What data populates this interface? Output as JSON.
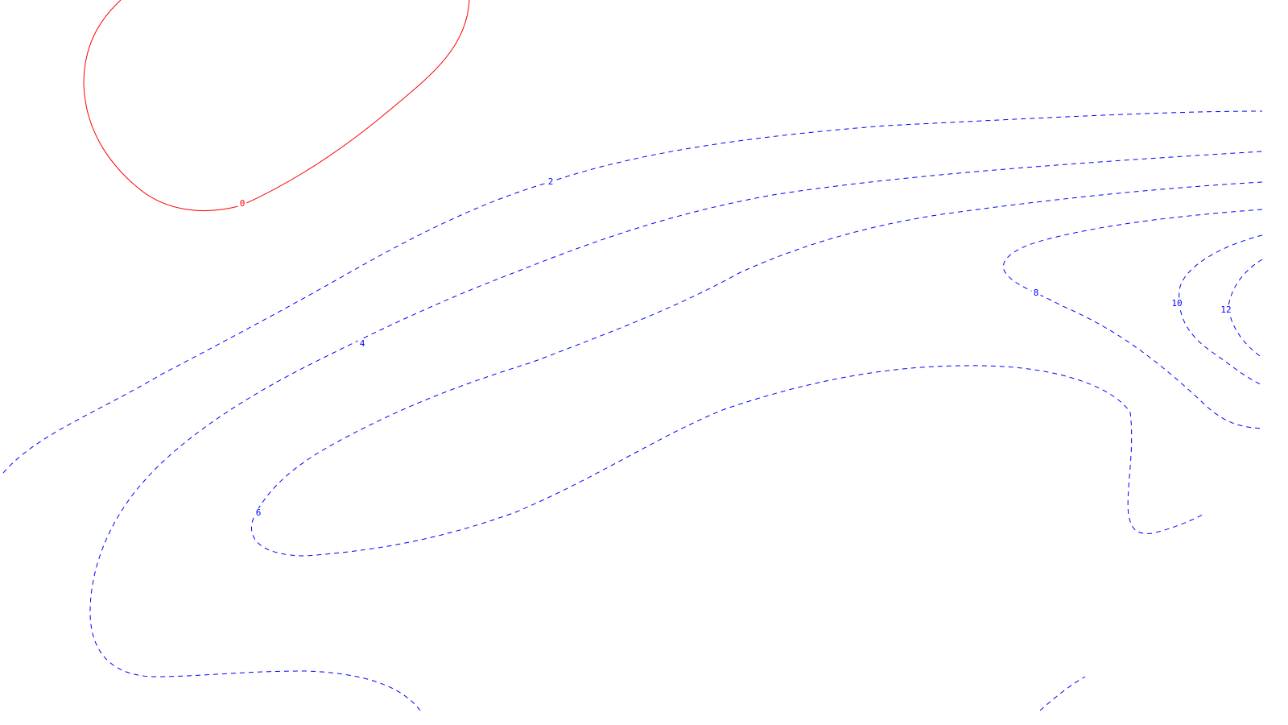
{
  "chart_data": {
    "type": "contour",
    "title": "",
    "xlabel": "",
    "ylabel": "",
    "colors": {
      "zero": "#ff0000",
      "positive": "#0000ff",
      "background": "#ffffff"
    },
    "levels": [
      {
        "value": 0,
        "label": "0",
        "style": "solid",
        "color": "#ff0000"
      },
      {
        "value": 2,
        "label": "2",
        "style": "dashed",
        "color": "#0000ff"
      },
      {
        "value": 4,
        "label": "4",
        "style": "dashed",
        "color": "#0000ff"
      },
      {
        "value": 6,
        "label": "6",
        "style": "dashed",
        "color": "#0000ff"
      },
      {
        "value": 8,
        "label": "8",
        "style": "dashed",
        "color": "#0000ff"
      },
      {
        "value": 10,
        "label": "10",
        "style": "dashed",
        "color": "#0000ff"
      },
      {
        "value": 12,
        "label": "12",
        "style": "dashed",
        "color": "#0000ff"
      }
    ]
  }
}
